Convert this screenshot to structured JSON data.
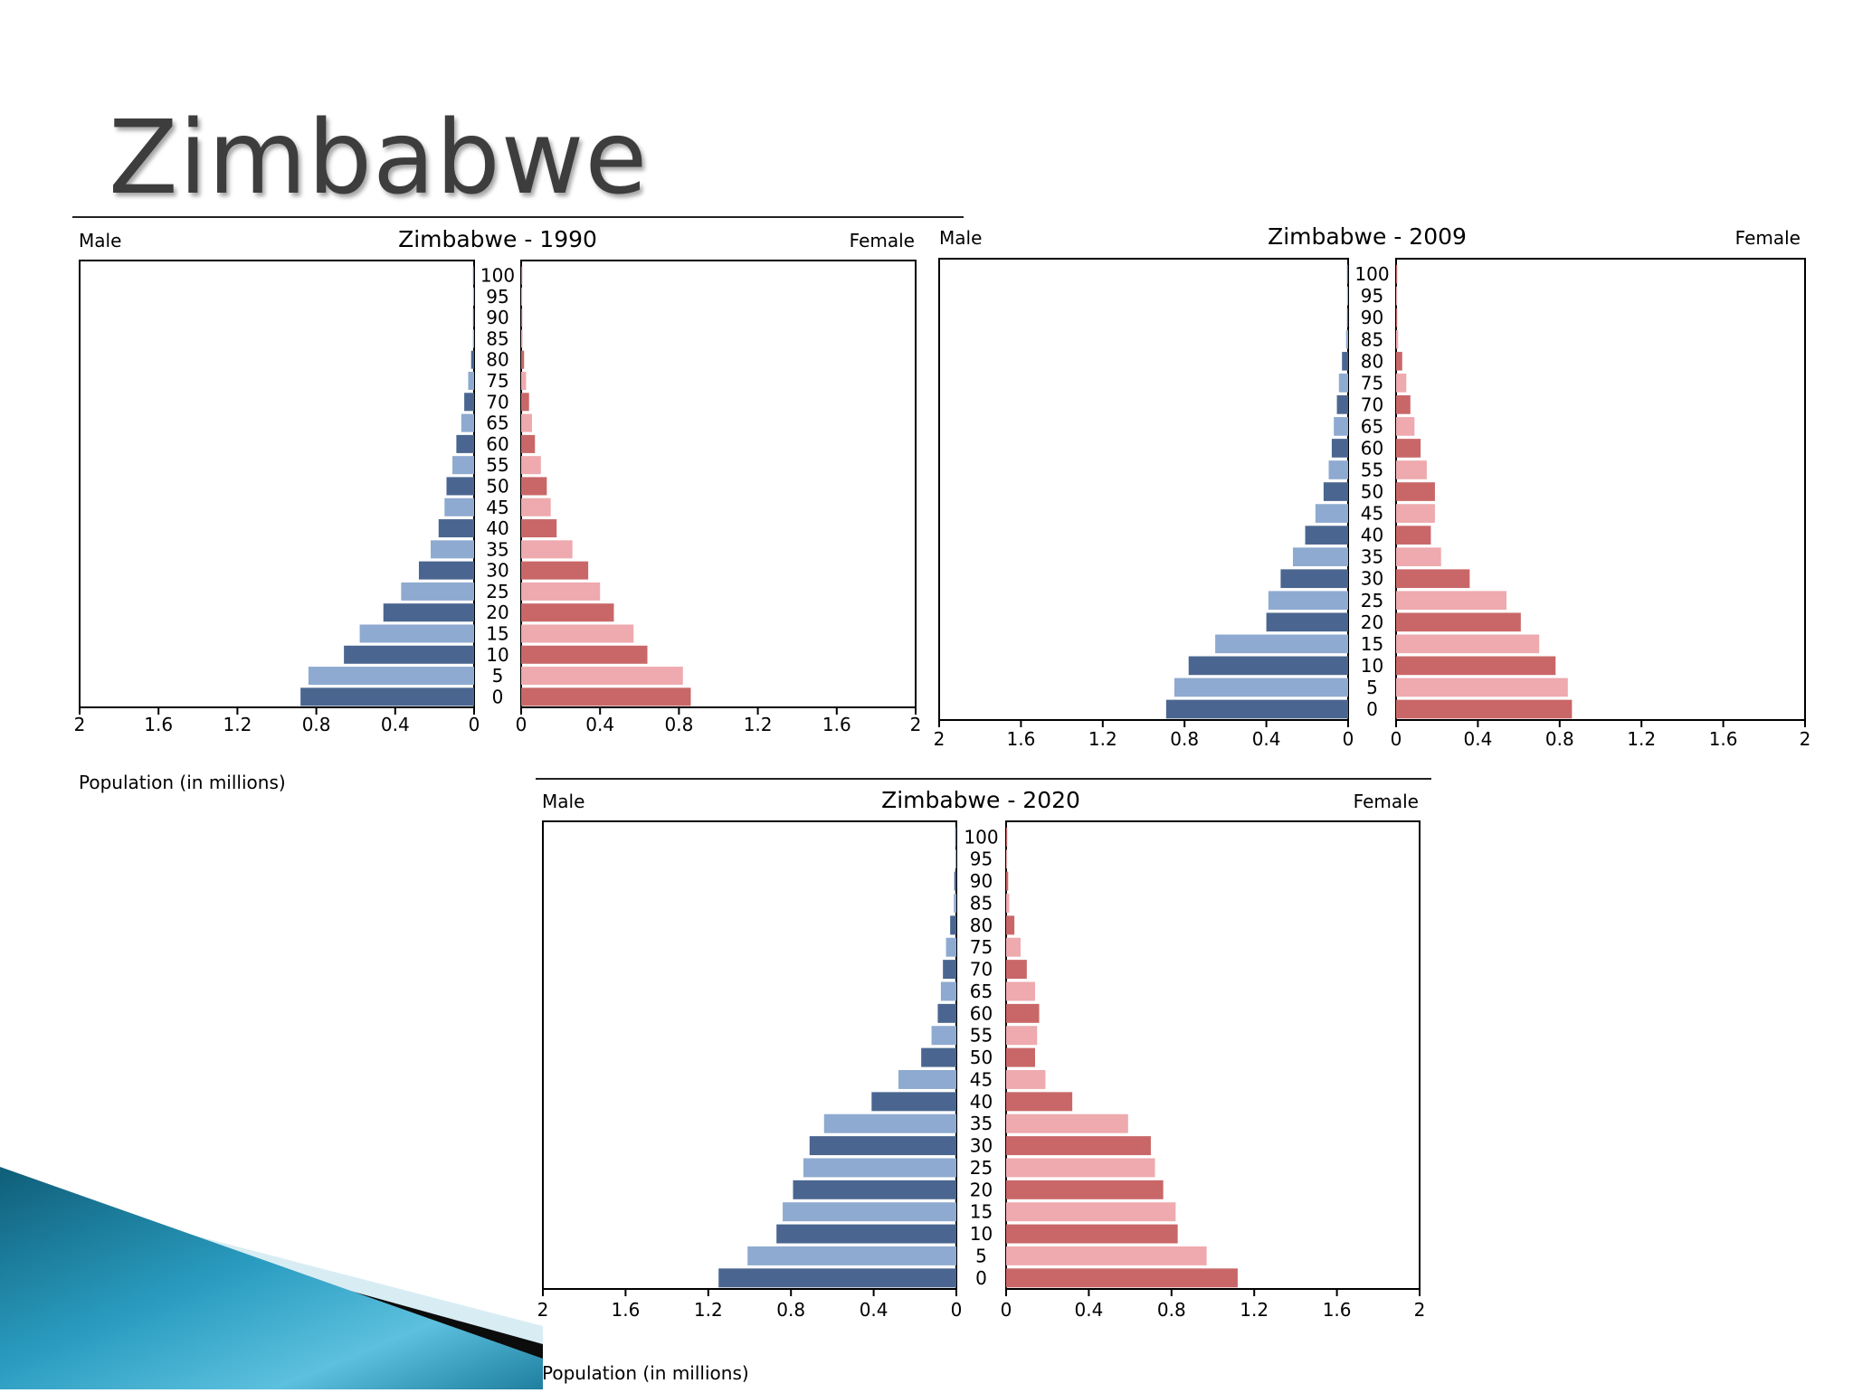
{
  "slide": {
    "title": "Zimbabwe"
  },
  "colors": {
    "male_dark": "#4a6690",
    "male_light": "#8eaad0",
    "female_dark": "#c96768",
    "female_light": "#eeaaae",
    "axis": "#000000",
    "title_text": "#3d3d3d"
  },
  "chart_data": [
    {
      "type": "bar",
      "title": "Zimbabwe - 1990",
      "left_label": "Male",
      "right_label": "Female",
      "xlabel": "Population (in millions)",
      "xlim": [
        0,
        2
      ],
      "x_ticks": [
        "2",
        "1.6",
        "1.2",
        "0.8",
        "0.4",
        "0"
      ],
      "x_ticks_right": [
        "0",
        "0.4",
        "0.8",
        "1.2",
        "1.6",
        "2"
      ],
      "categories": [
        "0",
        "5",
        "10",
        "15",
        "20",
        "25",
        "30",
        "35",
        "40",
        "45",
        "50",
        "55",
        "60",
        "65",
        "70",
        "75",
        "80",
        "85",
        "90",
        "95",
        "100"
      ],
      "series": [
        {
          "name": "Male",
          "values": [
            0.88,
            0.84,
            0.66,
            0.58,
            0.46,
            0.37,
            0.28,
            0.22,
            0.18,
            0.15,
            0.14,
            0.11,
            0.09,
            0.065,
            0.05,
            0.03,
            0.015,
            0.006,
            0.003,
            0.002,
            0.001
          ]
        },
        {
          "name": "Female",
          "values": [
            0.86,
            0.82,
            0.64,
            0.57,
            0.47,
            0.4,
            0.34,
            0.26,
            0.18,
            0.15,
            0.13,
            0.1,
            0.07,
            0.055,
            0.04,
            0.025,
            0.015,
            0.007,
            0.004,
            0.002,
            0.001
          ]
        }
      ]
    },
    {
      "type": "bar",
      "title": "Zimbabwe - 2009",
      "left_label": "Male",
      "right_label": "Female",
      "xlabel": "",
      "xlim": [
        0,
        2
      ],
      "x_ticks": [
        "2",
        "1.6",
        "1.2",
        "0.8",
        "0.4",
        "0"
      ],
      "x_ticks_right": [
        "0",
        "0.4",
        "0.8",
        "1.2",
        "1.6",
        "2"
      ],
      "categories": [
        "0",
        "5",
        "10",
        "15",
        "20",
        "25",
        "30",
        "35",
        "40",
        "45",
        "50",
        "55",
        "60",
        "65",
        "70",
        "75",
        "80",
        "85",
        "90",
        "95",
        "100"
      ],
      "series": [
        {
          "name": "Male",
          "values": [
            0.89,
            0.85,
            0.78,
            0.65,
            0.4,
            0.39,
            0.33,
            0.27,
            0.21,
            0.16,
            0.12,
            0.095,
            0.08,
            0.07,
            0.055,
            0.045,
            0.03,
            0.01,
            0.005,
            0.002,
            0.001
          ]
        },
        {
          "name": "Female",
          "values": [
            0.86,
            0.84,
            0.78,
            0.7,
            0.61,
            0.54,
            0.36,
            0.22,
            0.17,
            0.19,
            0.19,
            0.15,
            0.12,
            0.09,
            0.07,
            0.05,
            0.03,
            0.01,
            0.005,
            0.002,
            0.001
          ]
        }
      ]
    },
    {
      "type": "bar",
      "title": "Zimbabwe - 2020",
      "left_label": "Male",
      "right_label": "Female",
      "xlabel": "Population (in millions)",
      "xlim": [
        0,
        2
      ],
      "x_ticks": [
        "2",
        "1.6",
        "1.2",
        "0.8",
        "0.4",
        "0"
      ],
      "x_ticks_right": [
        "0",
        "0.4",
        "0.8",
        "1.2",
        "1.6",
        "2"
      ],
      "categories": [
        "0",
        "5",
        "10",
        "15",
        "20",
        "25",
        "30",
        "35",
        "40",
        "45",
        "50",
        "55",
        "60",
        "65",
        "70",
        "75",
        "80",
        "85",
        "90",
        "95",
        "100"
      ],
      "series": [
        {
          "name": "Male",
          "values": [
            1.15,
            1.01,
            0.87,
            0.84,
            0.79,
            0.74,
            0.71,
            0.64,
            0.41,
            0.28,
            0.17,
            0.12,
            0.09,
            0.075,
            0.065,
            0.05,
            0.03,
            0.012,
            0.01,
            0.004,
            0.002
          ]
        },
        {
          "name": "Female",
          "values": [
            1.12,
            0.97,
            0.83,
            0.82,
            0.76,
            0.72,
            0.7,
            0.59,
            0.32,
            0.19,
            0.14,
            0.15,
            0.16,
            0.14,
            0.1,
            0.07,
            0.04,
            0.015,
            0.01,
            0.004,
            0.002
          ]
        }
      ]
    }
  ]
}
